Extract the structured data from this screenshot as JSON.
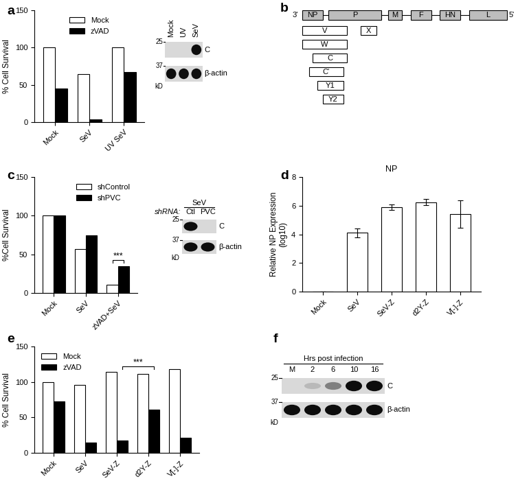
{
  "chart_data": [
    {
      "panel": "a",
      "type": "bar",
      "categories": [
        "Mock",
        "SeV",
        "UV SeV"
      ],
      "series": [
        {
          "name": "Mock",
          "color": "#ffffff",
          "values": [
            100,
            64,
            100
          ]
        },
        {
          "name": "zVAD",
          "color": "#000000",
          "values": [
            45,
            4,
            67
          ]
        }
      ],
      "y_label": "% Cell Survival",
      "ylim": [
        0,
        150
      ],
      "yticks": [
        0,
        50,
        100,
        150
      ],
      "legend": "upper center"
    },
    {
      "panel": "c",
      "type": "bar",
      "categories": [
        "Mock",
        "SeV",
        "zVAD+SeV"
      ],
      "series": [
        {
          "name": "shControl",
          "color": "#ffffff",
          "values": [
            100,
            57,
            11
          ]
        },
        {
          "name": "shPVC",
          "color": "#000000",
          "values": [
            100,
            75,
            35
          ]
        }
      ],
      "y_label": "%Cell Survival",
      "ylim": [
        0,
        150
      ],
      "yticks": [
        0,
        50,
        100,
        150
      ],
      "legend": "upper right",
      "annotations": [
        {
          "text": "***",
          "from": [
            "zVAD+SeV",
            "shControl"
          ],
          "to": [
            "zVAD+SeV",
            "shPVC"
          ]
        }
      ]
    },
    {
      "panel": "d",
      "type": "bar",
      "title": "NP",
      "categories": [
        "Mock",
        "SeV",
        "SeV-Z",
        "d2Y-Z",
        "V[-]-Z"
      ],
      "values": [
        0,
        4.1,
        5.9,
        6.25,
        5.4
      ],
      "errors": [
        0,
        0.3,
        0.2,
        0.2,
        0.95
      ],
      "color": "#ffffff",
      "y_label": "Relative NP Expression\n(log10)",
      "ylim": [
        0,
        8
      ],
      "yticks": [
        0,
        2,
        4,
        6,
        8
      ]
    },
    {
      "panel": "e",
      "type": "bar",
      "categories": [
        "Mock",
        "SeV",
        "SeV-Z",
        "d2Y-Z",
        "V[-]-Z"
      ],
      "series": [
        {
          "name": "Mock",
          "color": "#ffffff",
          "values": [
            100,
            96,
            114,
            111,
            118
          ]
        },
        {
          "name": "zVAD",
          "color": "#000000",
          "values": [
            73,
            15,
            17,
            61,
            21
          ]
        }
      ],
      "y_label": "% Cell Survival",
      "ylim": [
        0,
        150
      ],
      "yticks": [
        0,
        50,
        100,
        150
      ],
      "legend": "upper left",
      "annotations": [
        {
          "text": "***",
          "from": [
            "SeV-Z",
            "zVAD"
          ],
          "to": [
            "d2Y-Z",
            "zVAD"
          ]
        }
      ]
    }
  ],
  "diagram": {
    "panel": "b",
    "ends": [
      "3'",
      "5'"
    ],
    "genes": [
      "NP",
      "P",
      "M",
      "F",
      "HN",
      "L"
    ],
    "proteins": [
      "V",
      "W",
      "C",
      "C'",
      "Y1",
      "Y2",
      "X"
    ]
  },
  "blots": [
    {
      "lanes": [
        "Mock",
        "UV",
        "SeV"
      ],
      "bands": [
        {
          "label": "C",
          "intensity": [
            0,
            0,
            1
          ]
        },
        {
          "label": "β-actin",
          "intensity": [
            1,
            1,
            1
          ]
        }
      ],
      "markers": [
        25,
        37
      ],
      "marker_unit": "kD"
    },
    {
      "header": "SeV",
      "row_label": "shRNA:",
      "lanes": [
        "Ctl",
        "PVC"
      ],
      "bands": [
        {
          "label": "C",
          "intensity": [
            1,
            0
          ]
        },
        {
          "label": "β-actin",
          "intensity": [
            1,
            1
          ]
        }
      ],
      "markers": [
        25,
        37
      ],
      "marker_unit": "kD"
    },
    {
      "panel": "f",
      "header": "Hrs post infection",
      "lanes": [
        "M",
        "2",
        "6",
        "10",
        "16"
      ],
      "bands": [
        {
          "label": "C",
          "intensity": [
            0,
            0.1,
            0.4,
            1,
            1
          ]
        },
        {
          "label": "β-actin",
          "intensity": [
            1,
            1,
            1,
            1,
            1
          ]
        }
      ],
      "markers": [
        25,
        37
      ],
      "marker_unit": "kD"
    }
  ]
}
